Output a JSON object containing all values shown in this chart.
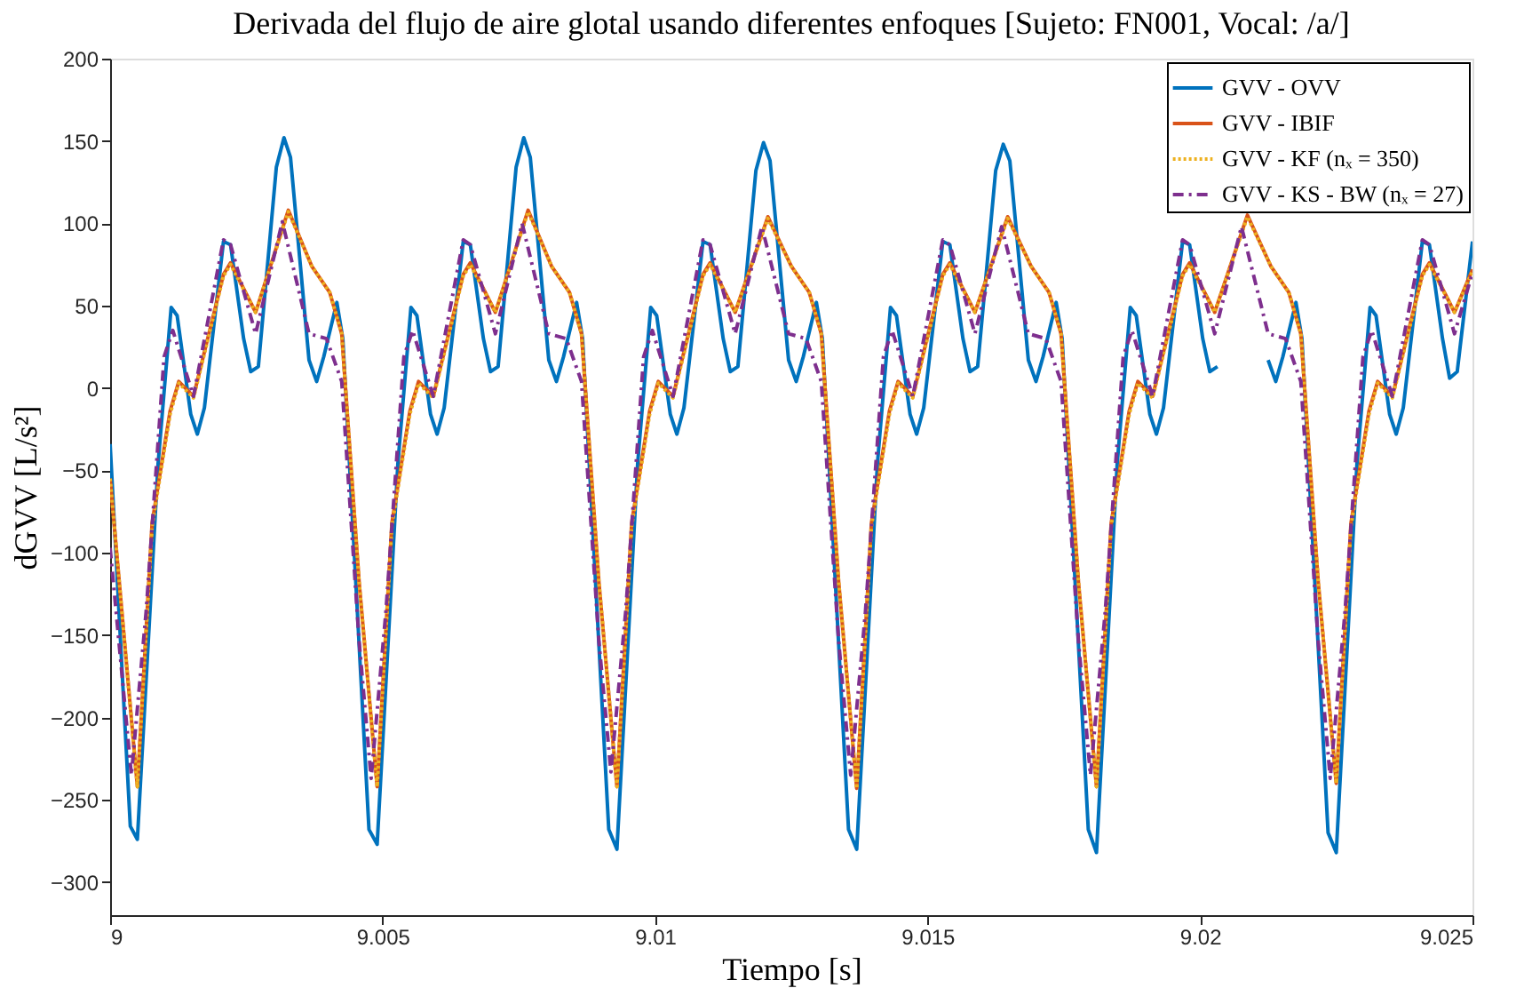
{
  "chart_data": {
    "type": "line",
    "title": "Derivada del flujo de aire glotal usando diferentes enfoques [Sujeto: FN001, Vocal: /a/]",
    "xlabel": "Tiempo [s]",
    "ylabel": "dGVV [L/s²]",
    "xlim": [
      9,
      9.025
    ],
    "xticks": [
      9,
      9.005,
      9.01,
      9.015,
      9.02,
      9.025
    ],
    "ylim": [
      -320,
      200
    ],
    "yticks": [
      -300,
      -250,
      -200,
      -150,
      -100,
      -50,
      0,
      50,
      100,
      150,
      200
    ],
    "grid": false,
    "legend": "top right",
    "marker": "none",
    "series": [
      {
        "name": "GVV - OVV",
        "color": "#0072bd",
        "line_style": "solid",
        "x": [
          9.0,
          9.00037,
          9.0005,
          9.00088,
          9.00112,
          9.00123,
          9.00148,
          9.0016,
          9.00173,
          9.00208,
          9.00221,
          9.00245,
          9.00258,
          9.00272,
          9.00305,
          9.00319,
          9.00331,
          9.00365,
          9.00379,
          9.00392,
          9.00416,
          9.00427,
          9.00475,
          9.0049,
          9.00528,
          9.00552,
          9.00563,
          9.00588,
          9.006,
          9.00613,
          9.00648,
          9.00661,
          9.00685,
          9.00698,
          9.00712,
          9.00745,
          9.00759,
          9.00771,
          9.00805,
          9.00819,
          9.00832,
          9.00856,
          9.00867,
          9.00915,
          9.0093,
          9.00968,
          9.00992,
          9.01003,
          9.01028,
          9.0104,
          9.01053,
          9.01088,
          9.01101,
          9.01125,
          9.01138,
          9.01152,
          9.01185,
          9.01199,
          9.01211,
          9.01245,
          9.01259,
          9.01272,
          9.01296,
          9.01307,
          9.01355,
          9.0137,
          9.01408,
          9.01432,
          9.01443,
          9.01468,
          9.0148,
          9.01493,
          9.01528,
          9.01541,
          9.01565,
          9.01578,
          9.01592,
          9.01625,
          9.01639,
          9.01651,
          9.01685,
          9.01699,
          9.01712,
          9.01736,
          9.01747,
          9.01795,
          9.0181,
          9.01848,
          9.01872,
          9.01883,
          9.01908,
          9.0192,
          9.01933,
          9.01968,
          9.01981,
          9.02005,
          9.02018,
          9.02032,
          9.02065,
          9.02079,
          9.02091,
          9.02125,
          9.02139,
          9.02152,
          9.02176,
          9.02187,
          9.02235,
          9.0225,
          9.02288,
          9.02312,
          9.02323,
          9.02348,
          9.0236,
          9.02373,
          9.02408,
          9.02421,
          9.02445,
          9.02458,
          9.02472,
          9.025
        ],
        "values": [
          -34,
          -266,
          -274,
          -46,
          49,
          44,
          -16,
          -28,
          -12,
          89,
          87,
          30,
          10,
          13,
          134,
          152,
          140,
          17,
          4,
          19,
          52,
          30,
          -268,
          -277,
          -46,
          49,
          44,
          -16,
          -28,
          -12,
          89,
          87,
          30,
          10,
          13,
          134,
          152,
          140,
          17,
          4,
          19,
          52,
          30,
          -268,
          -280,
          -46,
          49,
          44,
          -16,
          -28,
          -12,
          89,
          87,
          30,
          10,
          13,
          132,
          149,
          138,
          17,
          4,
          19,
          52,
          30,
          -268,
          -280,
          -46,
          49,
          44,
          -16,
          -28,
          -12,
          89,
          87,
          30,
          10,
          13,
          132,
          148,
          138,
          17,
          4,
          19,
          52,
          30,
          -268,
          -282,
          -46,
          49,
          44,
          -16,
          -28,
          -12,
          89,
          87,
          30,
          10,
          13,
          null,
          null,
          null,
          17,
          4,
          19,
          52,
          30,
          -270,
          -282,
          -46,
          49,
          44,
          -16,
          -28,
          -12,
          89,
          87,
          30,
          6,
          10,
          89
        ]
      },
      {
        "name": "GVV - IBIF",
        "color": "#d95319",
        "line_style": "solid",
        "x": [
          9.0,
          9.0005,
          9.00077,
          9.0011,
          9.00126,
          9.00153,
          9.00208,
          9.00221,
          9.00267,
          9.00327,
          9.0037,
          9.00403,
          9.00425,
          9.00457,
          9.0049,
          9.00517,
          9.0055,
          9.00566,
          9.00593,
          9.00648,
          9.00661,
          9.00707,
          9.00767,
          9.0081,
          9.00843,
          9.00865,
          9.00897,
          9.0093,
          9.00957,
          9.0099,
          9.01006,
          9.01033,
          9.01088,
          9.01101,
          9.01147,
          9.01207,
          9.0125,
          9.01283,
          9.01305,
          9.01337,
          9.0137,
          9.01397,
          9.0143,
          9.01446,
          9.01473,
          9.01528,
          9.01541,
          9.01587,
          9.01647,
          9.0169,
          9.01723,
          9.01745,
          9.01777,
          9.0181,
          9.01837,
          9.0187,
          9.01886,
          9.01913,
          9.01968,
          9.01981,
          9.02027,
          9.02087,
          9.0213,
          9.02163,
          9.02185,
          9.02217,
          9.0225,
          9.02277,
          9.0231,
          9.02326,
          9.02353,
          9.02408,
          9.02421,
          9.02467,
          9.025
        ],
        "values": [
          -55,
          -242,
          -82,
          -14,
          4,
          -5,
          69,
          76,
          46,
          108,
          74,
          58,
          33,
          -118,
          -242,
          -82,
          -14,
          4,
          -5,
          69,
          76,
          46,
          108,
          74,
          58,
          33,
          -118,
          -242,
          -82,
          -14,
          4,
          -5,
          69,
          76,
          46,
          104,
          74,
          58,
          33,
          -118,
          -243,
          -82,
          -14,
          4,
          -5,
          69,
          76,
          46,
          104,
          74,
          58,
          33,
          -118,
          -242,
          -82,
          -14,
          4,
          -5,
          69,
          76,
          46,
          105,
          74,
          58,
          33,
          -118,
          -240,
          -82,
          -14,
          4,
          -5,
          69,
          76,
          46,
          72
        ]
      },
      {
        "name": "GVV - KF (nₓ = 350)",
        "color": "#edb120",
        "line_style": "dotted",
        "x": [
          9.0,
          9.0005,
          9.00077,
          9.0011,
          9.00126,
          9.00153,
          9.00208,
          9.00221,
          9.00267,
          9.00327,
          9.0037,
          9.00403,
          9.00425,
          9.00457,
          9.0049,
          9.00517,
          9.0055,
          9.00566,
          9.00593,
          9.00648,
          9.00661,
          9.00707,
          9.00767,
          9.0081,
          9.00843,
          9.00865,
          9.00897,
          9.0093,
          9.00957,
          9.0099,
          9.01006,
          9.01033,
          9.01088,
          9.01101,
          9.01147,
          9.01207,
          9.0125,
          9.01283,
          9.01305,
          9.01337,
          9.0137,
          9.01397,
          9.0143,
          9.01446,
          9.01473,
          9.01528,
          9.01541,
          9.01587,
          9.01647,
          9.0169,
          9.01723,
          9.01745,
          9.01777,
          9.0181,
          9.01837,
          9.0187,
          9.01886,
          9.01913,
          9.01968,
          9.01981,
          9.02027,
          9.02087,
          9.0213,
          9.02163,
          9.02185,
          9.02217,
          9.0225,
          9.02277,
          9.0231,
          9.02326,
          9.02353,
          9.02408,
          9.02421,
          9.02467,
          9.025
        ],
        "values": [
          -55,
          -242,
          -84,
          -16,
          3,
          -6,
          68,
          75,
          46,
          107,
          74,
          58,
          33,
          -118,
          -242,
          -84,
          -16,
          3,
          -6,
          68,
          75,
          46,
          107,
          74,
          58,
          33,
          -118,
          -242,
          -84,
          -16,
          3,
          -6,
          68,
          75,
          46,
          103,
          74,
          58,
          33,
          -118,
          -243,
          -84,
          -16,
          3,
          -6,
          68,
          75,
          46,
          103,
          74,
          58,
          33,
          -118,
          -242,
          -84,
          -16,
          3,
          -6,
          68,
          75,
          46,
          104,
          74,
          58,
          33,
          -118,
          -240,
          -84,
          -16,
          3,
          -6,
          68,
          75,
          46,
          71
        ]
      },
      {
        "name": "GVV - KS - BW (nₓ = 27)",
        "color": "#7e2f8e",
        "line_style": "dashed",
        "x": [
          9.0,
          9.00039,
          9.00066,
          9.00099,
          9.00115,
          9.00153,
          9.00208,
          9.00221,
          9.00267,
          9.00316,
          9.00365,
          9.00397,
          9.00425,
          9.00457,
          9.00479,
          9.00506,
          9.00539,
          9.00555,
          9.00593,
          9.00648,
          9.00661,
          9.00707,
          9.00756,
          9.00805,
          9.00837,
          9.00865,
          9.00897,
          9.00919,
          9.00946,
          9.00979,
          9.00995,
          9.01033,
          9.01088,
          9.01101,
          9.01147,
          9.01196,
          9.01245,
          9.01277,
          9.01305,
          9.01337,
          9.01359,
          9.01386,
          9.01419,
          9.01435,
          9.01473,
          9.01528,
          9.01541,
          9.01587,
          9.01636,
          9.01685,
          9.01717,
          9.01745,
          9.01777,
          9.01799,
          9.01826,
          9.01859,
          9.01875,
          9.01913,
          9.01968,
          9.01981,
          9.02027,
          9.02076,
          9.02125,
          9.02157,
          9.02185,
          9.02217,
          9.02239,
          9.02266,
          9.02299,
          9.02315,
          9.02353,
          9.02408,
          9.02421,
          9.02467,
          9.025
        ],
        "values": [
          -97,
          -235,
          -136,
          19,
          35,
          -5,
          90,
          87,
          33,
          101,
          33,
          30,
          4,
          -154,
          -237,
          -136,
          19,
          35,
          -5,
          90,
          87,
          33,
          100,
          33,
          30,
          4,
          -154,
          -233,
          -136,
          19,
          35,
          -5,
          90,
          87,
          33,
          98,
          33,
          30,
          4,
          -154,
          -235,
          -136,
          19,
          35,
          -5,
          90,
          87,
          33,
          98,
          33,
          30,
          4,
          -154,
          -235,
          -136,
          19,
          35,
          -5,
          90,
          87,
          33,
          98,
          33,
          30,
          4,
          -154,
          -237,
          -136,
          19,
          35,
          -5,
          90,
          87,
          33,
          70
        ]
      }
    ]
  }
}
